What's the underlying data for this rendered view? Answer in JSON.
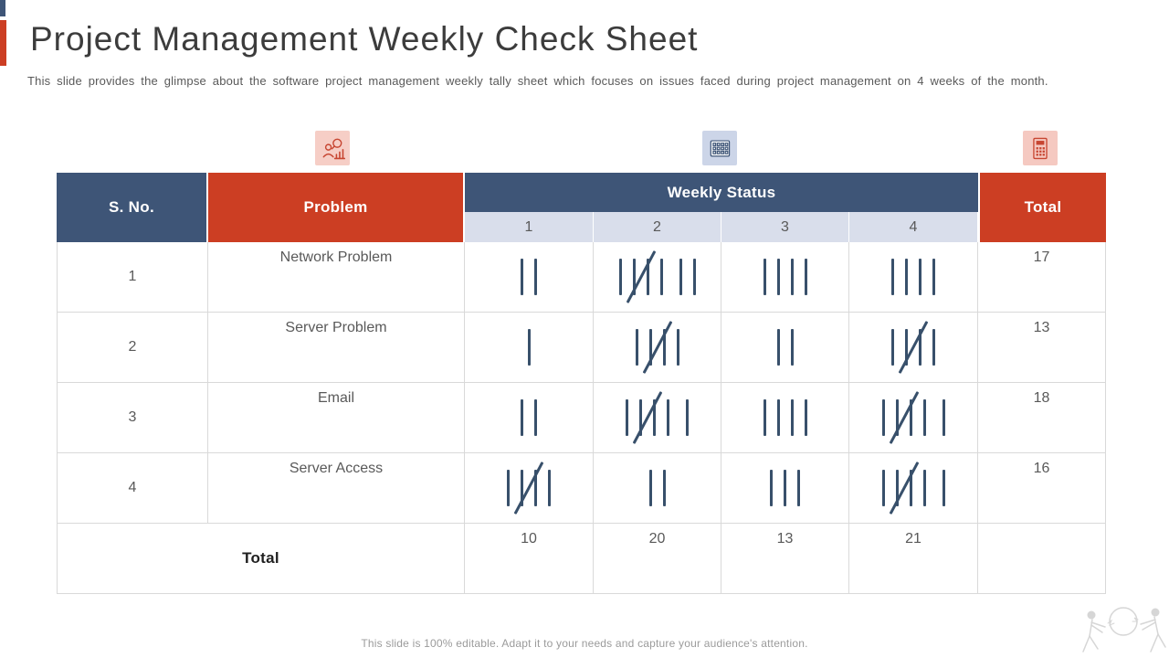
{
  "accent": {
    "blue": "#3E5577",
    "red": "#CC3E23",
    "light_row": "#D9DEEB",
    "tally": "#38506B"
  },
  "header": {
    "title": "Project Management Weekly Check Sheet",
    "subtitle": "This slide provides the glimpse about the software project management weekly tally sheet which focuses on issues faced during project management on 4 weeks of the month."
  },
  "icons": {
    "analysis": "person-magnifier-chart-icon",
    "grid": "calendar-grid-icon",
    "calculator": "calculator-icon"
  },
  "table": {
    "col_sno": "S. No.",
    "col_problem": "Problem",
    "col_weekly_status": "Weekly Status",
    "week_labels": [
      "1",
      "2",
      "3",
      "4"
    ],
    "col_total": "Total",
    "rows": [
      {
        "sno": "1",
        "problem": "Network Problem",
        "weeks": [
          [
            2
          ],
          [
            5,
            2
          ],
          [
            4
          ],
          [
            4
          ]
        ],
        "total": "17"
      },
      {
        "sno": "2",
        "problem": "Server Problem",
        "weeks": [
          [
            1
          ],
          [
            5
          ],
          [
            2
          ],
          [
            5
          ]
        ],
        "total": "13"
      },
      {
        "sno": "3",
        "problem": "Email",
        "weeks": [
          [
            2
          ],
          [
            5,
            1
          ],
          [
            4
          ],
          [
            5,
            1
          ]
        ],
        "total": "18"
      },
      {
        "sno": "4",
        "problem": "Server Access",
        "weeks": [
          [
            5
          ],
          [
            2
          ],
          [
            3
          ],
          [
            5,
            1
          ]
        ],
        "total": "16"
      }
    ],
    "footer_row": {
      "label": "Total",
      "values": [
        "10",
        "20",
        "13",
        "21"
      ],
      "total": ""
    }
  },
  "footer": {
    "note": "This slide is 100% editable. Adapt it to your needs and capture your audience's attention."
  }
}
